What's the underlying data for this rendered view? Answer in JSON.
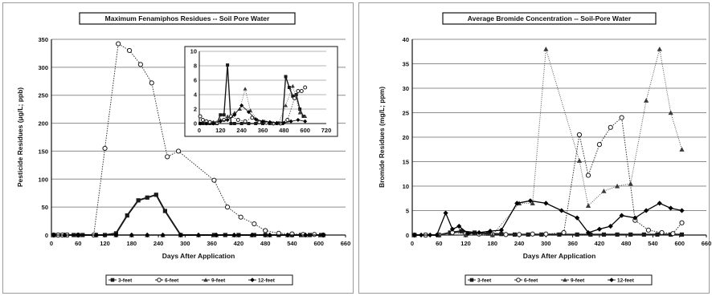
{
  "chart_data": [
    {
      "type": "line",
      "title": "Maximum Fenamiphos Residues -- Soil Pore Water",
      "xlabel": "Days After Application",
      "ylabel": "Pesticide Residues (μg/L; ppb)",
      "xlim": [
        0,
        660
      ],
      "ylim": [
        0,
        350
      ],
      "xticks": [
        0,
        60,
        120,
        180,
        240,
        300,
        360,
        420,
        480,
        540,
        600,
        660
      ],
      "yticks": [
        0,
        50,
        100,
        150,
        200,
        250,
        300,
        350
      ],
      "grid": true,
      "legend_position": "bottom",
      "series": [
        {
          "name": "3-feet",
          "marker": "square",
          "color": "#222222",
          "x": [
            5,
            15,
            25,
            35,
            50,
            70,
            100,
            120,
            145,
            170,
            195,
            215,
            235,
            255,
            290,
            365,
            390,
            420,
            455,
            480,
            510,
            540,
            560,
            580,
            605
          ],
          "y": [
            0,
            0,
            0,
            0,
            0,
            0,
            0,
            0,
            3,
            35,
            62,
            67,
            72,
            43,
            0,
            0,
            0,
            0,
            0,
            0,
            0,
            0,
            0,
            0,
            0
          ]
        },
        {
          "name": "6-feet",
          "marker": "circle",
          "color": "#333333",
          "x": [
            5,
            15,
            25,
            35,
            60,
            95,
            120,
            150,
            175,
            200,
            225,
            260,
            285,
            365,
            395,
            425,
            455,
            480,
            510,
            540,
            565,
            590,
            610
          ],
          "y": [
            0,
            0,
            0,
            0,
            0,
            0,
            155,
            342,
            330,
            305,
            272,
            140,
            150,
            98,
            50,
            32,
            20,
            8,
            3,
            2,
            1,
            1,
            0
          ]
        },
        {
          "name": "9-feet",
          "marker": "triangle",
          "color": "#666666",
          "x": [
            5,
            30,
            60,
            100,
            145,
            180,
            215,
            250,
            290,
            330,
            370,
            410,
            450,
            490,
            530,
            570,
            610
          ],
          "y": [
            0,
            0,
            0,
            0,
            0,
            0,
            0,
            0,
            0,
            0,
            0,
            0,
            0,
            0,
            0,
            0,
            0
          ]
        },
        {
          "name": "12-feet",
          "marker": "diamond",
          "color": "#111111",
          "x": [
            5,
            30,
            60,
            100,
            145,
            180,
            215,
            250,
            290,
            330,
            370,
            410,
            450,
            490,
            530,
            570,
            610
          ],
          "y": [
            0,
            0,
            0,
            0,
            0,
            0,
            0,
            0,
            0,
            0,
            0,
            0,
            0,
            0,
            0,
            0,
            0
          ]
        }
      ],
      "inset": {
        "xlim": [
          0,
          720
        ],
        "ylim": [
          0,
          10
        ],
        "xticks": [
          0,
          120,
          240,
          360,
          480,
          600,
          720
        ],
        "yticks": [
          0,
          2,
          4,
          6,
          8,
          10
        ],
        "series": [
          {
            "name": "3-feet",
            "marker": "square",
            "x": [
              5,
              20,
              40,
              60,
              80,
              100,
              120,
              140,
              160,
              180,
              200,
              240,
              280,
              320,
              360,
              400,
              440,
              470,
              490,
              510,
              530,
              550,
              570,
              590
            ],
            "y": [
              0,
              0,
              0,
              0,
              0,
              0,
              1.2,
              1.2,
              8.1,
              0,
              0,
              0,
              0,
              0,
              0,
              0,
              0,
              0,
              6.5,
              5.0,
              3.8,
              4.0,
              2.0,
              1.0
            ]
          },
          {
            "name": "6-feet",
            "marker": "circle",
            "x": [
              5,
              20,
              40,
              60,
              80,
              100,
              140,
              180,
              220,
              260,
              300,
              340,
              380,
              420,
              460,
              500,
              540,
              560,
              580,
              600
            ],
            "y": [
              1.0,
              0.5,
              0.3,
              0.2,
              0.1,
              0.1,
              0.5,
              1.0,
              0.5,
              0.3,
              0.8,
              0.2,
              0.1,
              0,
              0,
              0.5,
              3.5,
              4.5,
              4.5,
              5.0
            ]
          },
          {
            "name": "9-feet",
            "marker": "triangle",
            "x": [
              5,
              40,
              80,
              120,
              160,
              200,
              230,
              260,
              290,
              330,
              370,
              410,
              450,
              490,
              530,
              570,
              600
            ],
            "y": [
              0,
              0,
              0.2,
              0.5,
              1.0,
              1.5,
              2.0,
              4.8,
              1.8,
              0.5,
              0.3,
              0.1,
              0.1,
              2.5,
              5.2,
              1.5,
              1.0
            ]
          },
          {
            "name": "12-feet",
            "marker": "diamond",
            "x": [
              5,
              40,
              80,
              120,
              160,
              200,
              240,
              280,
              320,
              360,
              400,
              440,
              480,
              520,
              560,
              600
            ],
            "y": [
              0,
              0,
              0,
              0.3,
              0.5,
              1.2,
              2.5,
              1.6,
              0.6,
              0.3,
              0.2,
              0.1,
              0.1,
              0.3,
              0.5,
              0.3
            ]
          }
        ]
      }
    },
    {
      "type": "line",
      "title": "Average Bromide Concentration -- Soil-Pore Water",
      "xlabel": "Days After Application",
      "ylabel": "Bromide Residues (mg/L; ppm)",
      "xlim": [
        0,
        660
      ],
      "ylim": [
        0,
        40
      ],
      "xticks": [
        0,
        60,
        120,
        180,
        240,
        300,
        360,
        420,
        480,
        540,
        600,
        660
      ],
      "yticks": [
        0,
        5,
        10,
        15,
        20,
        25,
        30,
        35,
        40
      ],
      "grid": true,
      "legend_position": "bottom",
      "series": [
        {
          "name": "3-feet",
          "marker": "square",
          "color": "#222222",
          "x": [
            5,
            30,
            60,
            85,
            110,
            140,
            170,
            200,
            230,
            260,
            290,
            330,
            370,
            400,
            430,
            460,
            490,
            520,
            550,
            580,
            605
          ],
          "y": [
            0,
            0,
            0,
            0.5,
            0.8,
            0.5,
            0.3,
            0.2,
            0.1,
            0.1,
            0.1,
            0.1,
            0.1,
            0.1,
            0.1,
            0.1,
            0.1,
            0.1,
            0.1,
            0.1,
            0.1
          ]
        },
        {
          "name": "6-feet",
          "marker": "circle",
          "color": "#333333",
          "x": [
            5,
            30,
            60,
            90,
            120,
            150,
            180,
            210,
            240,
            270,
            300,
            340,
            375,
            395,
            420,
            445,
            470,
            500,
            530,
            560,
            585,
            605
          ],
          "y": [
            0,
            0,
            0,
            0.5,
            0.3,
            0.2,
            0.1,
            0.1,
            0.1,
            0.2,
            0.2,
            0.5,
            20.5,
            12.2,
            18.5,
            22.0,
            24.0,
            3.0,
            1.0,
            0.5,
            0.3,
            2.5
          ]
        },
        {
          "name": "9-feet",
          "marker": "triangle",
          "color": "#444444",
          "x": [
            5,
            60,
            120,
            180,
            240,
            270,
            300,
            375,
            395,
            430,
            460,
            490,
            525,
            555,
            580,
            605
          ],
          "y": [
            0,
            0,
            0,
            0,
            6.5,
            6.5,
            38.0,
            15.2,
            6.0,
            9.0,
            10.0,
            10.5,
            27.5,
            38.0,
            25.0,
            17.5
          ]
        },
        {
          "name": "12-feet",
          "marker": "diamond",
          "color": "#111111",
          "x": [
            5,
            20,
            40,
            55,
            75,
            90,
            105,
            125,
            150,
            175,
            200,
            235,
            265,
            300,
            335,
            370,
            395,
            420,
            445,
            470,
            500,
            525,
            555,
            580,
            605
          ],
          "y": [
            0,
            0,
            0,
            0,
            4.5,
            1.2,
            1.8,
            0.3,
            0.5,
            0.8,
            1.0,
            6.5,
            7.0,
            6.5,
            5.0,
            3.5,
            0.5,
            1.2,
            1.8,
            4.0,
            3.5,
            5.0,
            6.5,
            5.5,
            5.0
          ]
        }
      ]
    }
  ]
}
